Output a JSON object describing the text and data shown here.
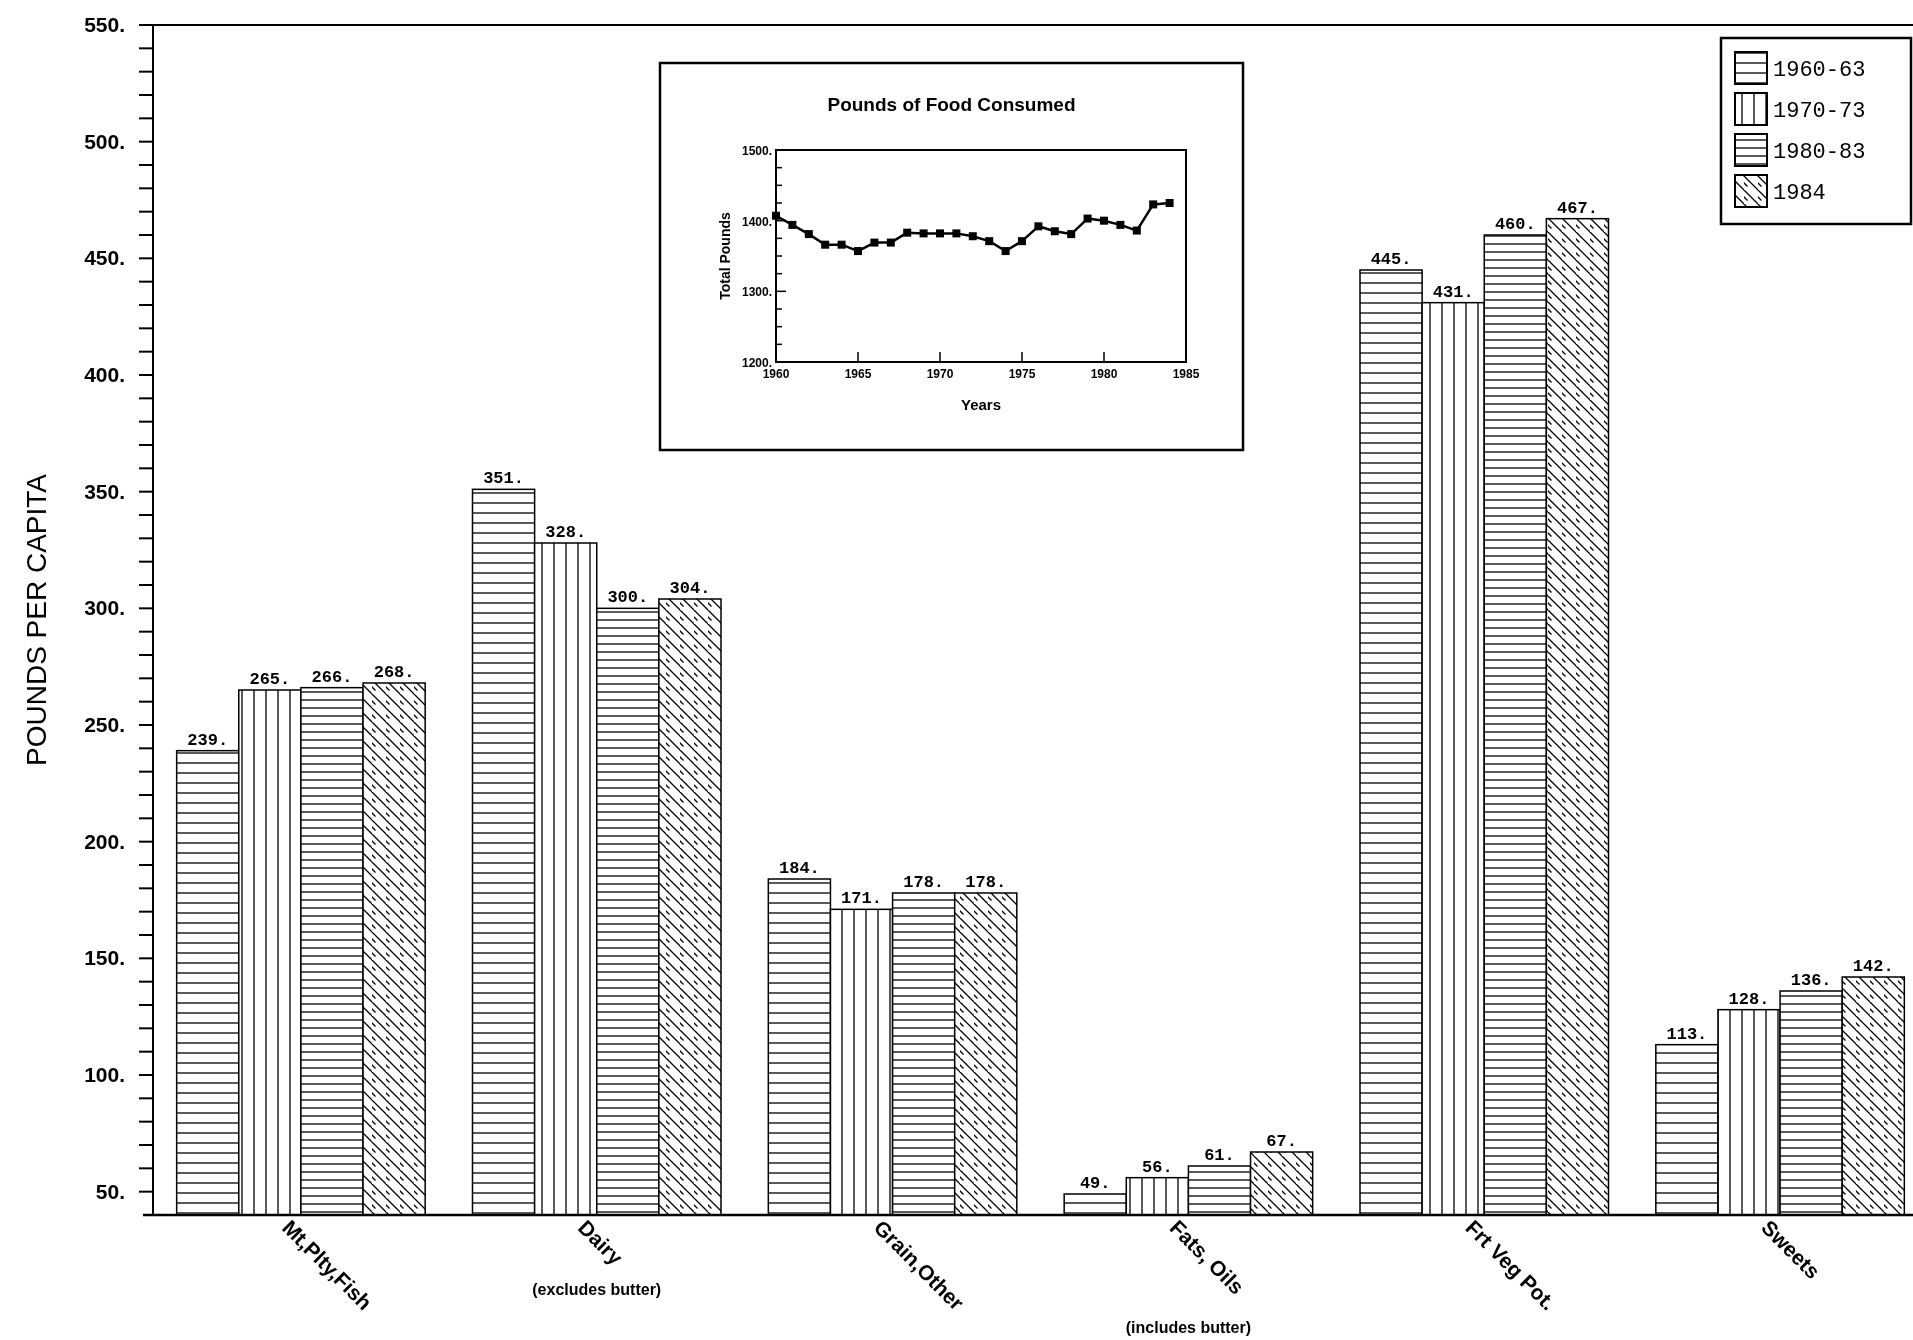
{
  "chart_data": [
    {
      "type": "bar",
      "ylabel": "POUNDS PER CAPITA",
      "categories": [
        "Mt,Plty,Fish",
        "Dairy",
        "Grain,Other",
        "Fats, Oils",
        "Frt Veg Pot.",
        "Sweets"
      ],
      "series": [
        {
          "name": "1960-63",
          "color": "#000000",
          "values": [
            239,
            351,
            184,
            49,
            445,
            113
          ],
          "value_labels": [
            "239.",
            "351.",
            "184.",
            "49.",
            "445.",
            "113."
          ]
        },
        {
          "name": "1970-73",
          "color": "#000000",
          "values": [
            265,
            328,
            171,
            56,
            431,
            128
          ],
          "value_labels": [
            "265.",
            "328.",
            "171.",
            "56.",
            "431.",
            "128."
          ]
        },
        {
          "name": "1980-83",
          "color": "#000000",
          "values": [
            266,
            300,
            178,
            61,
            460,
            136
          ],
          "value_labels": [
            "266.",
            "300.",
            "178.",
            "61.",
            "460.",
            "136."
          ]
        },
        {
          "name": "1984",
          "color": "#000000",
          "values": [
            268,
            304,
            178,
            67,
            467,
            142
          ],
          "value_labels": [
            "268.",
            "304.",
            "178.",
            "67.",
            "467.",
            "142."
          ]
        }
      ],
      "ylim": [
        40,
        550
      ],
      "yticks": [
        {
          "value": 50,
          "label": "50."
        },
        {
          "value": 60,
          "label": null
        },
        {
          "value": 70,
          "label": null
        },
        {
          "value": 80,
          "label": null
        },
        {
          "value": 90,
          "label": null
        },
        {
          "value": 100,
          "label": "100."
        },
        {
          "value": 110,
          "label": null
        },
        {
          "value": 120,
          "label": null
        },
        {
          "value": 130,
          "label": null
        },
        {
          "value": 140,
          "label": null
        },
        {
          "value": 150,
          "label": "150."
        },
        {
          "value": 160,
          "label": null
        },
        {
          "value": 170,
          "label": null
        },
        {
          "value": 180,
          "label": null
        },
        {
          "value": 190,
          "label": null
        },
        {
          "value": 200,
          "label": "200."
        },
        {
          "value": 210,
          "label": null
        },
        {
          "value": 220,
          "label": null
        },
        {
          "value": 230,
          "label": null
        },
        {
          "value": 240,
          "label": null
        },
        {
          "value": 250,
          "label": "250."
        },
        {
          "value": 260,
          "label": null
        },
        {
          "value": 270,
          "label": null
        },
        {
          "value": 280,
          "label": null
        },
        {
          "value": 290,
          "label": null
        },
        {
          "value": 300,
          "label": "300."
        },
        {
          "value": 310,
          "label": null
        },
        {
          "value": 320,
          "label": null
        },
        {
          "value": 330,
          "label": null
        },
        {
          "value": 340,
          "label": null
        },
        {
          "value": 350,
          "label": "350."
        },
        {
          "value": 360,
          "label": null
        },
        {
          "value": 370,
          "label": null
        },
        {
          "value": 380,
          "label": null
        },
        {
          "value": 390,
          "label": null
        },
        {
          "value": 400,
          "label": "400."
        },
        {
          "value": 410,
          "label": null
        },
        {
          "value": 420,
          "label": null
        },
        {
          "value": 430,
          "label": null
        },
        {
          "value": 440,
          "label": null
        },
        {
          "value": 450,
          "label": "450."
        },
        {
          "value": 460,
          "label": null
        },
        {
          "value": 470,
          "label": null
        },
        {
          "value": 480,
          "label": null
        },
        {
          "value": 490,
          "label": null
        },
        {
          "value": 500,
          "label": "500."
        },
        {
          "value": 510,
          "label": null
        },
        {
          "value": 520,
          "label": null
        },
        {
          "value": 530,
          "label": null
        },
        {
          "value": 540,
          "label": null
        },
        {
          "value": 550,
          "label": "550."
        }
      ],
      "legend": "top right",
      "annotations": [
        "(excludes butter)",
        "(includes butter)"
      ]
    },
    {
      "type": "line",
      "title": "Pounds of Food Consumed",
      "xlabel": "Years",
      "ylabel": "Total Pounds",
      "x": [
        1960,
        1961,
        1962,
        1963,
        1964,
        1965,
        1966,
        1967,
        1968,
        1969,
        1970,
        1971,
        1972,
        1973,
        1974,
        1975,
        1976,
        1977,
        1978,
        1979,
        1980,
        1981,
        1982,
        1983,
        1984
      ],
      "series": [
        {
          "color": "#000000",
          "values": [
            1407,
            1394,
            1381,
            1366,
            1366,
            1357,
            1369,
            1369,
            1383,
            1382,
            1382,
            1382,
            1378,
            1371,
            1357,
            1371,
            1392,
            1385,
            1381,
            1403,
            1400,
            1394,
            1386,
            1423,
            1425
          ]
        }
      ],
      "xlim": [
        1960,
        1985
      ],
      "xticks": [
        1960,
        1965,
        1970,
        1975,
        1980,
        1985
      ],
      "ylim": [
        1200,
        1500
      ],
      "yticks": [
        {
          "value": 1200,
          "label": "1200."
        },
        {
          "value": 1225,
          "label": null
        },
        {
          "value": 1250,
          "label": null
        },
        {
          "value": 1275,
          "label": null
        },
        {
          "value": 1300,
          "label": "1300."
        },
        {
          "value": 1325,
          "label": null
        },
        {
          "value": 1350,
          "label": null
        },
        {
          "value": 1375,
          "label": null
        },
        {
          "value": 1400,
          "label": "1400."
        },
        {
          "value": 1425,
          "label": null
        },
        {
          "value": 1450,
          "label": null
        },
        {
          "value": 1475,
          "label": null
        },
        {
          "value": 1500,
          "label": "1500."
        }
      ],
      "marker": "square",
      "line_style": "solid"
    }
  ]
}
